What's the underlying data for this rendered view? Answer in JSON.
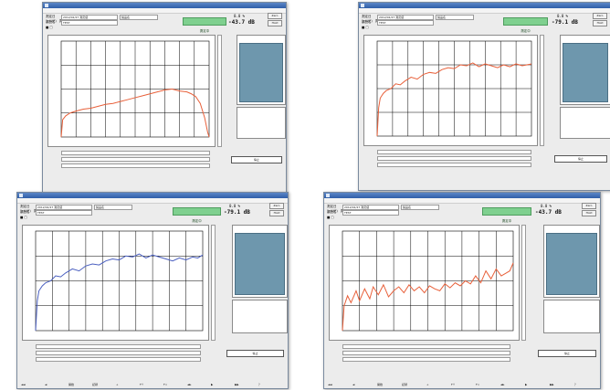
{
  "windows": [
    {
      "key": "w1",
      "menu": [
        "ﾌｧｲﾙ(F)",
        "測定(M)",
        "設定(S)",
        "View"
      ],
      "fields": [
        "2012/02/27 測定値",
        "TEST",
        "製品名"
      ],
      "row_labels": [
        "測定日",
        "製品名",
        "■ □"
      ],
      "status": "測定中",
      "measure_top": "0.0 %",
      "measure_main": "-43.7 dB",
      "buttons": [
        "Zero",
        "Hold"
      ],
      "result": "停止",
      "line_color": "#e8603a",
      "chart_data": {
        "type": "line",
        "xlim": [
          0,
          100
        ],
        "ylim": [
          0,
          100
        ],
        "x": [
          0,
          1,
          3,
          6,
          10,
          15,
          20,
          25,
          30,
          35,
          40,
          45,
          50,
          55,
          60,
          65,
          70,
          75,
          80,
          85,
          88,
          91,
          94,
          97,
          99,
          100
        ],
        "y": [
          0,
          18,
          22,
          25,
          27,
          29,
          30,
          32,
          34,
          35,
          37,
          39,
          41,
          43,
          45,
          47,
          49,
          50,
          48,
          47,
          45,
          42,
          35,
          20,
          5,
          0
        ]
      },
      "bottom_labels": []
    },
    {
      "key": "w2",
      "menu": [
        "ﾌｧｲﾙ(F)",
        "測定(M)",
        "設定(S)",
        "View"
      ],
      "fields": [
        "2012/02/27 測定値",
        "TEST",
        "製品名"
      ],
      "row_labels": [
        "測定日",
        "製品名",
        "■ □"
      ],
      "status": "測定中",
      "measure_top": "0.0 %",
      "measure_main": "-79.1 dB",
      "buttons": [
        "Zero",
        "Hold"
      ],
      "result": "停止",
      "line_color": "#e8603a",
      "chart_data": {
        "type": "line",
        "xlim": [
          0,
          100
        ],
        "ylim": [
          0,
          100
        ],
        "x": [
          0,
          1,
          2,
          4,
          6,
          9,
          12,
          15,
          18,
          22,
          26,
          30,
          34,
          38,
          42,
          46,
          50,
          54,
          58,
          62,
          66,
          70,
          74,
          78,
          82,
          86,
          90,
          94,
          97,
          100
        ],
        "y": [
          0,
          30,
          40,
          45,
          48,
          50,
          55,
          54,
          58,
          62,
          60,
          65,
          67,
          66,
          70,
          72,
          71,
          75,
          74,
          77,
          73,
          76,
          74,
          72,
          75,
          73,
          76,
          74,
          75,
          76
        ]
      },
      "bottom_labels": []
    },
    {
      "key": "w3",
      "menu": [
        "ﾌｧｲﾙ(F)",
        "測定(M)",
        "設定(S)",
        "View"
      ],
      "fields": [
        "2012/02/27 測定値",
        "TEST",
        "製品名"
      ],
      "row_labels": [
        "測定日",
        "製品名",
        "■ □"
      ],
      "status": "測定中",
      "measure_top": "0.0 %",
      "measure_main": "-79.1 dB",
      "buttons": [
        "Zero",
        "Hold"
      ],
      "result": "停止",
      "line_color": "#4a5fc0",
      "chart_data": {
        "type": "line",
        "xlim": [
          0,
          100
        ],
        "ylim": [
          0,
          100
        ],
        "x": [
          0,
          1,
          2,
          4,
          6,
          9,
          12,
          15,
          18,
          22,
          26,
          30,
          34,
          38,
          42,
          46,
          50,
          54,
          58,
          62,
          66,
          70,
          74,
          78,
          82,
          86,
          90,
          94,
          97,
          100
        ],
        "y": [
          0,
          30,
          40,
          45,
          48,
          50,
          55,
          54,
          58,
          62,
          60,
          65,
          67,
          66,
          70,
          72,
          71,
          75,
          74,
          77,
          73,
          76,
          74,
          72,
          70,
          73,
          71,
          74,
          73,
          76
        ]
      },
      "bottom_labels": [
        "◄◄",
        "◄",
        "開始",
        "記録",
        "+",
        "F↑",
        "F↓",
        "◄►",
        "▶",
        "▶▶",
        "？"
      ]
    },
    {
      "key": "w4",
      "menu": [
        "ﾌｧｲﾙ(F)",
        "測定(M)",
        "設定(S)",
        "View"
      ],
      "fields": [
        "2012/02/27 測定値",
        "TEST",
        "製品名"
      ],
      "row_labels": [
        "測定日",
        "製品名",
        "■ □"
      ],
      "status": "測定中",
      "measure_top": "0.0 %",
      "measure_main": "-43.7 dB",
      "buttons": [
        "Zero",
        "Hold"
      ],
      "result": "停止",
      "line_color": "#e8603a",
      "chart_data": {
        "type": "line",
        "xlim": [
          0,
          100
        ],
        "ylim": [
          0,
          100
        ],
        "x": [
          0,
          1,
          3,
          5,
          8,
          10,
          13,
          16,
          18,
          21,
          24,
          27,
          30,
          33,
          36,
          39,
          42,
          45,
          48,
          51,
          54,
          57,
          60,
          63,
          66,
          69,
          72,
          75,
          78,
          81,
          84,
          87,
          90,
          93,
          96,
          98,
          100
        ],
        "y": [
          0,
          25,
          35,
          28,
          40,
          30,
          42,
          32,
          44,
          36,
          46,
          34,
          40,
          44,
          38,
          46,
          40,
          44,
          38,
          45,
          42,
          40,
          47,
          43,
          48,
          45,
          50,
          47,
          55,
          48,
          60,
          52,
          62,
          55,
          58,
          60,
          68
        ]
      },
      "bottom_labels": [
        "◄◄",
        "◄",
        "開始",
        "記録",
        "+",
        "F↑",
        "F↓",
        "◄►",
        "▶",
        "▶▶",
        "？"
      ]
    }
  ]
}
